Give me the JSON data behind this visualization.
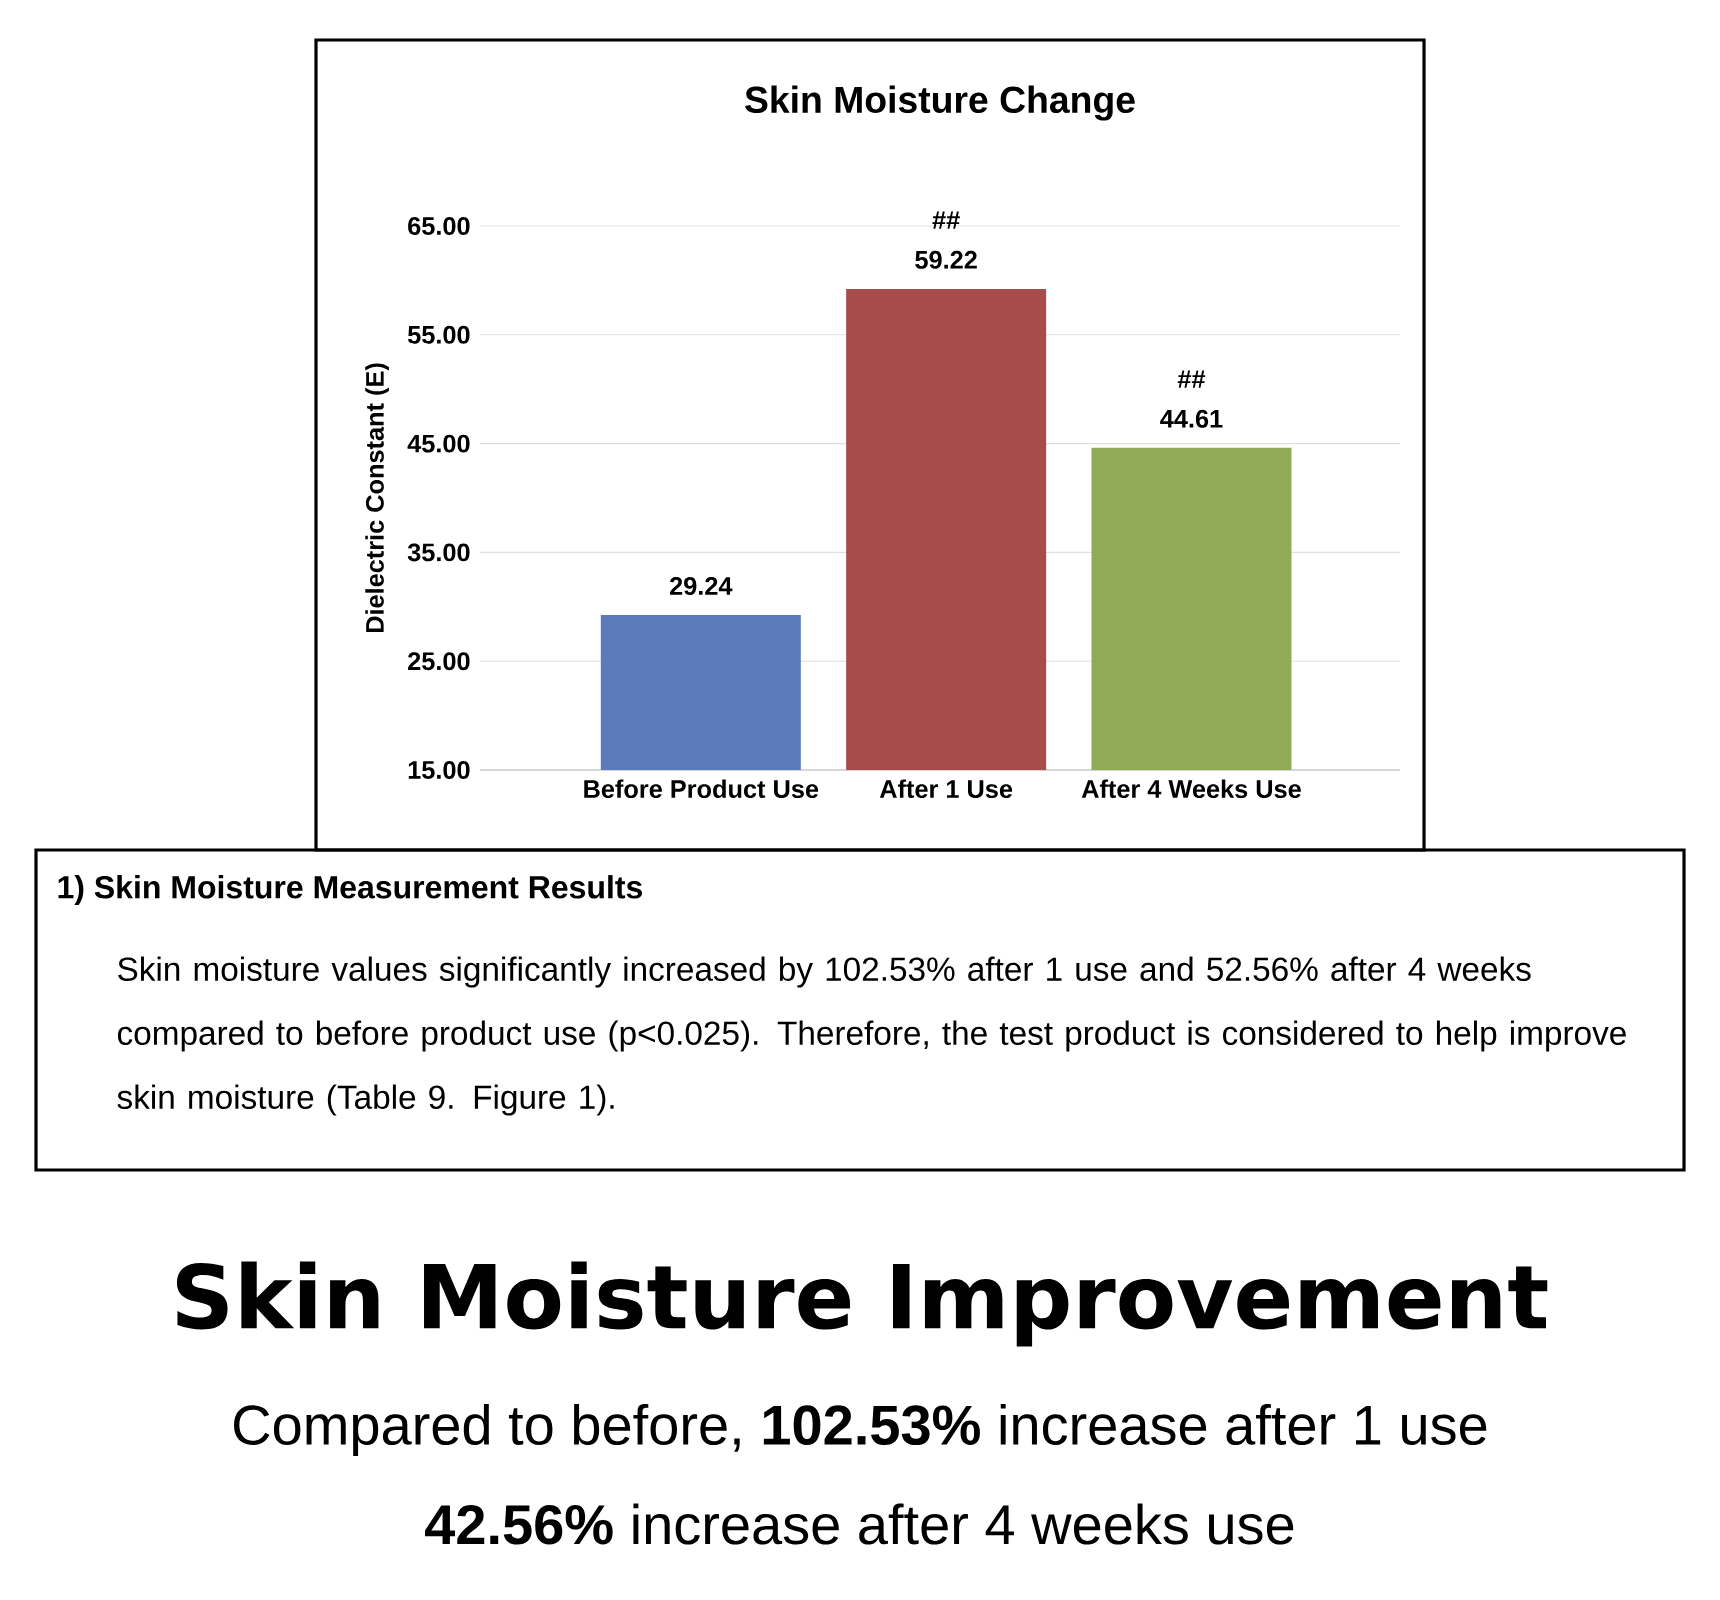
{
  "chart_data": {
    "type": "bar",
    "title": "Skin Moisture Change",
    "ylabel": "Dielectric Constant (E)",
    "categories": [
      "Before Product Use",
      "After 1 Use",
      "After 4 Weeks Use"
    ],
    "values": [
      29.24,
      59.22,
      44.61
    ],
    "colors": [
      "#5b7bbd",
      "#a64d4b",
      "#8fab58"
    ],
    "ylim": [
      15,
      65
    ],
    "yticks": [
      {
        "value": 15,
        "label": "15.00"
      },
      {
        "value": 25,
        "label": "25.00"
      },
      {
        "value": 35,
        "label": "35.00"
      },
      {
        "value": 45,
        "label": "45.00"
      },
      {
        "value": 55,
        "label": "55.00"
      },
      {
        "value": 65,
        "label": "65.00"
      }
    ],
    "grid": "y",
    "data_labels": true,
    "annotations": [
      {
        "text": "##",
        "x": "After 1 Use",
        "y": 59.22
      },
      {
        "text": "##",
        "x": "After 4 Weeks Use",
        "y": 44.61
      },
      "1)  Skin Moisture Measurement Results",
      "Skin moisture values significantly increased by 102.53% after 1 use and 52.56% after 4 weeks compared to before product use (p<0.025). Therefore, the test product is considered to help improve skin moisture (Table 9. Figure 1).",
      "Skin Moisture Improvement",
      "Compared to before, **102.53%** increase after 1 use",
      "**42.56%** increase after 4 weeks use"
    ]
  }
}
